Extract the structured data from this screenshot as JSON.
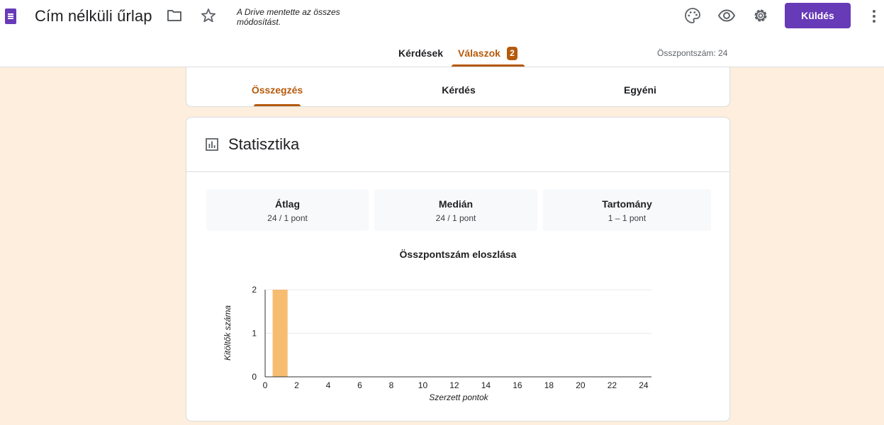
{
  "header": {
    "title": "Cím nélküli űrlap",
    "save_status": "A Drive mentette az összes módosítást.",
    "send_label": "Küldés",
    "icons": [
      "form-icon",
      "folder-icon",
      "star-icon",
      "palette-icon",
      "eye-icon",
      "gear-icon",
      "more-vert-icon"
    ],
    "accent_color": "#673ab7"
  },
  "tabs": {
    "questions": "Kérdések",
    "responses": "Válaszok",
    "responses_count": "2",
    "total_score": "Összpontszám: 24",
    "active_color": "#b55a0b"
  },
  "subtabs": {
    "summary": "Összegzés",
    "question": "Kérdés",
    "individual": "Egyéni"
  },
  "stats": {
    "title": "Statisztika",
    "metrics": [
      {
        "label": "Átlag",
        "value": "24 / 1 pont"
      },
      {
        "label": "Medián",
        "value": "24 / 1 pont"
      },
      {
        "label": "Tartomány",
        "value": "1 – 1 pont"
      }
    ]
  },
  "chart_data": {
    "type": "bar",
    "title": "Összpontszám eloszlása",
    "xlabel": "Szerzett pontok",
    "ylabel": "Kitöltők száma",
    "x_ticks": [
      0,
      2,
      4,
      6,
      8,
      10,
      12,
      14,
      16,
      18,
      20,
      22,
      24
    ],
    "y_ticks": [
      0,
      1,
      2
    ],
    "xlim": [
      0,
      24.5
    ],
    "ylim": [
      0,
      2
    ],
    "bars": [
      {
        "x": 1,
        "value": 2
      }
    ],
    "bar_color": "#f6bd71",
    "grid": true
  }
}
